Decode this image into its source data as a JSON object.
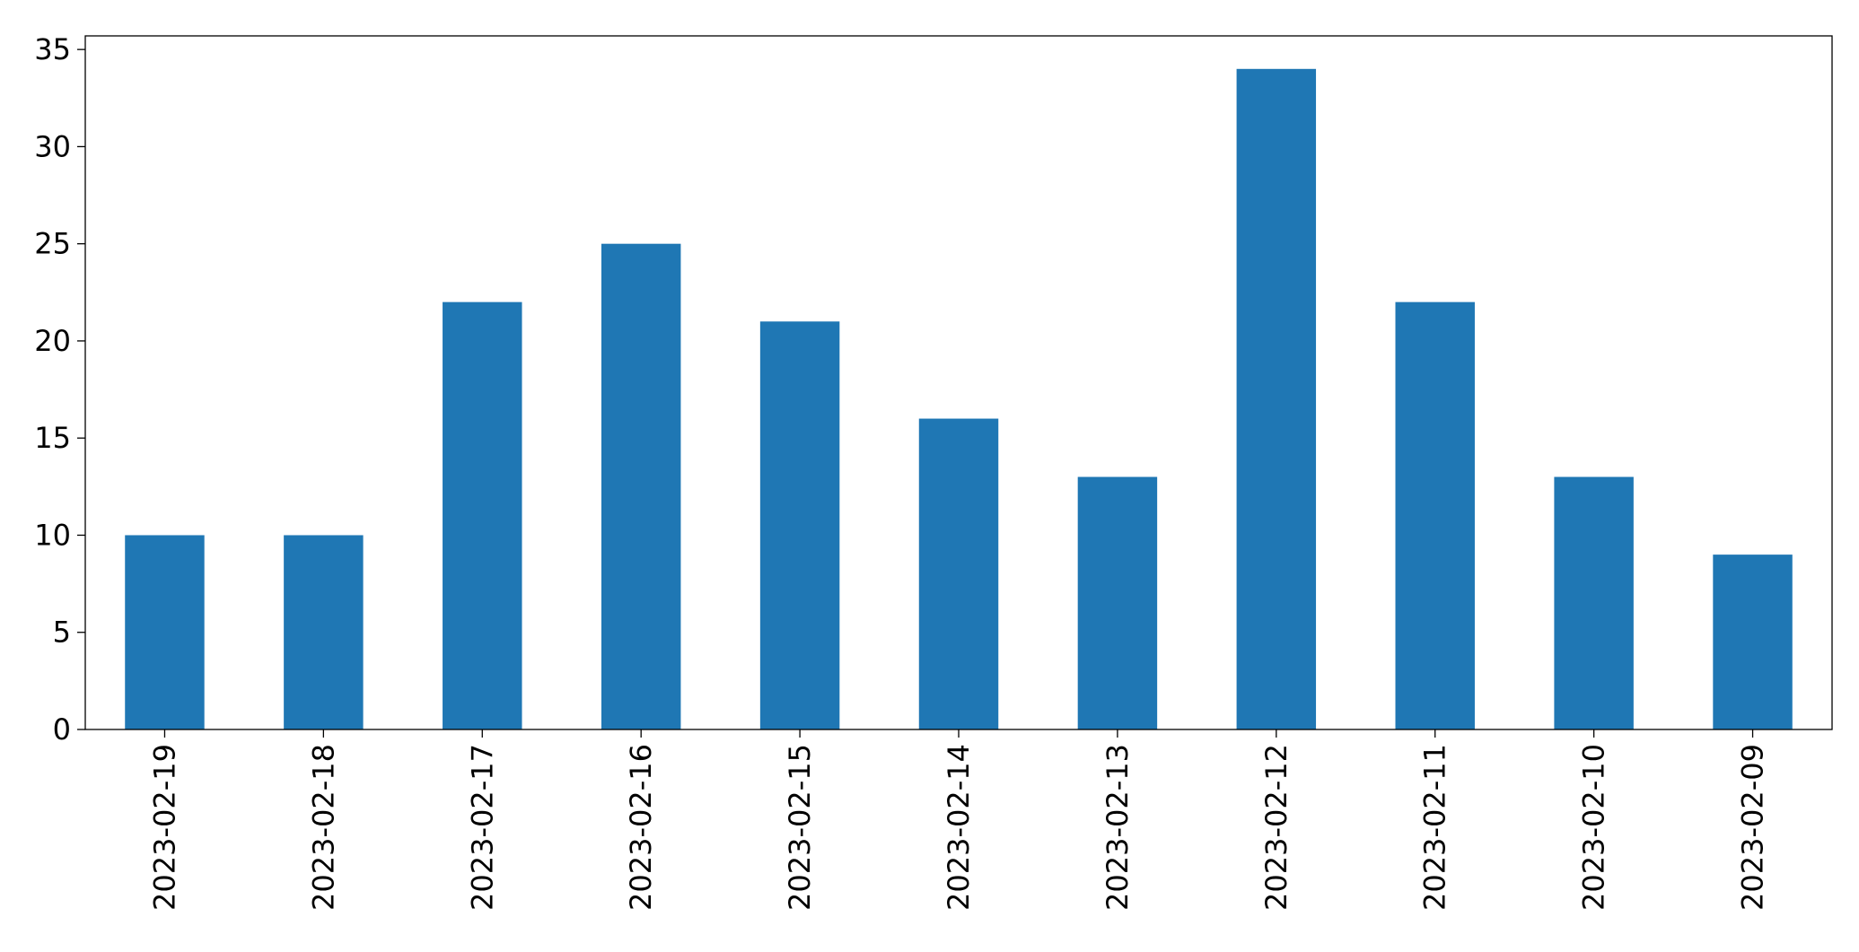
{
  "chart_data": {
    "type": "bar",
    "categories": [
      "2023-02-19",
      "2023-02-18",
      "2023-02-17",
      "2023-02-16",
      "2023-02-15",
      "2023-02-14",
      "2023-02-13",
      "2023-02-12",
      "2023-02-11",
      "2023-02-10",
      "2023-02-09"
    ],
    "values": [
      10,
      10,
      22,
      25,
      21,
      16,
      13,
      34,
      22,
      13,
      9
    ],
    "title": "",
    "xlabel": "",
    "ylabel": "",
    "ylim": [
      0,
      35.7
    ],
    "yticks": [
      0,
      5,
      10,
      15,
      20,
      25,
      30,
      35
    ],
    "grid": false,
    "bar_color": "#1f77b4"
  }
}
